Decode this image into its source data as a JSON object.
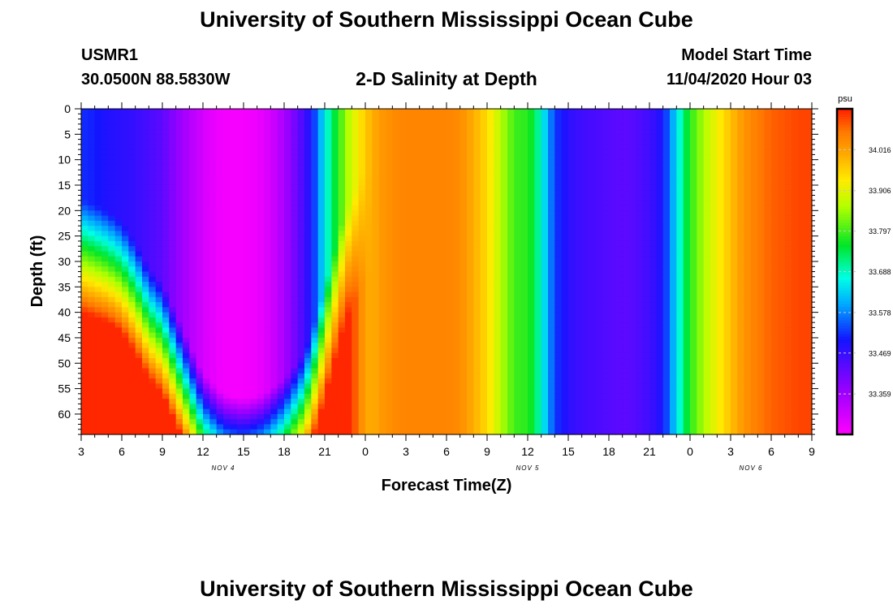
{
  "page": {
    "title_top": "University of Southern Mississippi Ocean Cube",
    "title_bottom": "University of Southern Mississippi Ocean Cube",
    "station_id": "USMR1",
    "station_coords": "30.0500N 88.5830W",
    "plot_title": "2-D Salinity at Depth",
    "model_start_label": "Model Start Time",
    "model_start_value": "11/04/2020 Hour 03"
  },
  "colors": {
    "frame": "#000000",
    "tick_text": "#000000",
    "colorbar_border": "#000000",
    "colorbar_dash": "#c8c8c8"
  },
  "chart_data": {
    "type": "heatmap",
    "title": "2-D Salinity at Depth",
    "xlabel": "Forecast Time(Z)",
    "ylabel": "Depth (ft)",
    "x_unit": "hours since 11/04/2020 03Z",
    "xlim": [
      0,
      54
    ],
    "ylim": [
      0,
      64
    ],
    "x_ticks": [
      {
        "h": 0,
        "label": "3"
      },
      {
        "h": 3,
        "label": "6"
      },
      {
        "h": 6,
        "label": "9"
      },
      {
        "h": 9,
        "label": "12"
      },
      {
        "h": 12,
        "label": "15"
      },
      {
        "h": 15,
        "label": "18"
      },
      {
        "h": 18,
        "label": "21"
      },
      {
        "h": 21,
        "label": "0"
      },
      {
        "h": 24,
        "label": "3"
      },
      {
        "h": 27,
        "label": "6"
      },
      {
        "h": 30,
        "label": "9"
      },
      {
        "h": 33,
        "label": "12"
      },
      {
        "h": 36,
        "label": "15"
      },
      {
        "h": 39,
        "label": "18"
      },
      {
        "h": 42,
        "label": "21"
      },
      {
        "h": 45,
        "label": "0"
      },
      {
        "h": 48,
        "label": "3"
      },
      {
        "h": 51,
        "label": "6"
      },
      {
        "h": 54,
        "label": "9"
      }
    ],
    "date_labels": [
      {
        "h": 10.5,
        "label": "NOV 4"
      },
      {
        "h": 33,
        "label": "NOV 5"
      },
      {
        "h": 49.5,
        "label": "NOV 6"
      }
    ],
    "y_ticks": [
      0,
      5,
      10,
      15,
      20,
      25,
      30,
      35,
      40,
      45,
      50,
      55,
      60
    ],
    "colorbar": {
      "unit": "psu",
      "vmin": 33.25,
      "vmax": 34.126,
      "ticks": [
        "34.016",
        "33.906",
        "33.797",
        "33.688",
        "33.578",
        "33.469",
        "33.359"
      ]
    },
    "surface_profile": {
      "hours": [
        0,
        1,
        2,
        3,
        4,
        5,
        6,
        7,
        8,
        9,
        10,
        11,
        12,
        13,
        14,
        15,
        16,
        17,
        17.5,
        18,
        18.5,
        19,
        19.5,
        20,
        20.5,
        21,
        22,
        23,
        24,
        25,
        26,
        27,
        28,
        29,
        30,
        30.5,
        31,
        31.5,
        32,
        32.5,
        33,
        33.5,
        34,
        34.5,
        35,
        36,
        37,
        38,
        39,
        40,
        41,
        42,
        43,
        43.5,
        44,
        44.5,
        45,
        45.5,
        46,
        46.5,
        47,
        47.5,
        48,
        49,
        50,
        51,
        52,
        53,
        54
      ],
      "psu": [
        33.52,
        33.51,
        33.49,
        33.48,
        33.47,
        33.45,
        33.43,
        33.38,
        33.34,
        33.3,
        33.27,
        33.26,
        33.26,
        33.27,
        33.3,
        33.35,
        33.42,
        33.5,
        33.57,
        33.66,
        33.72,
        33.78,
        33.84,
        33.89,
        33.93,
        33.97,
        34.02,
        34.04,
        34.05,
        34.05,
        34.05,
        34.05,
        34.04,
        34.0,
        33.95,
        33.91,
        33.87,
        33.83,
        33.8,
        33.78,
        33.79,
        33.74,
        33.68,
        33.6,
        33.53,
        33.48,
        33.46,
        33.45,
        33.44,
        33.43,
        33.44,
        33.46,
        33.5,
        33.57,
        33.64,
        33.72,
        33.78,
        33.82,
        33.86,
        33.89,
        33.92,
        33.95,
        33.98,
        34.03,
        34.06,
        34.08,
        34.09,
        34.1,
        34.1
      ]
    },
    "early_layer_profile": {
      "note": "hours 0-21: salinity grows with depth below a halocline",
      "halocline_depth_ft": [
        {
          "h": 0,
          "d": 22
        },
        {
          "h": 2,
          "d": 24
        },
        {
          "h": 3,
          "d": 26
        },
        {
          "h": 4,
          "d": 30
        },
        {
          "h": 5,
          "d": 35
        },
        {
          "h": 6,
          "d": 38
        },
        {
          "h": 7,
          "d": 44
        },
        {
          "h": 8,
          "d": 50
        },
        {
          "h": 9,
          "d": 56
        },
        {
          "h": 10.5,
          "d": 60
        },
        {
          "h": 12,
          "d": 61
        },
        {
          "h": 13.5,
          "d": 60
        },
        {
          "h": 15,
          "d": 57
        },
        {
          "h": 16.5,
          "d": 52
        },
        {
          "h": 17.5,
          "d": 44
        },
        {
          "h": 18.5,
          "d": 34
        },
        {
          "h": 19.5,
          "d": 24
        },
        {
          "h": 20.5,
          "d": 18
        },
        {
          "h": 21,
          "d": 15
        }
      ],
      "bottom_psu": 34.12
    }
  }
}
